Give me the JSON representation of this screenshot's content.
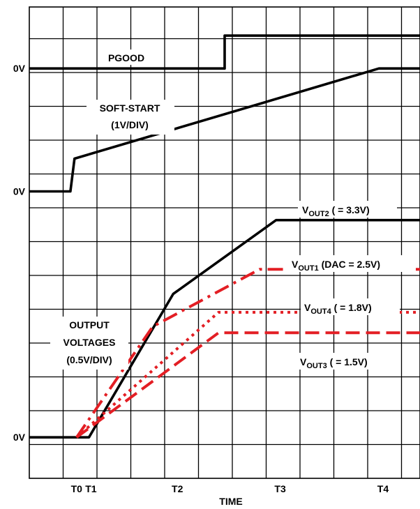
{
  "chart_data": {
    "type": "line",
    "title": "",
    "xlabel": "TIME",
    "x_ticks": [
      {
        "label": "T0",
        "x": 2.3
      },
      {
        "label": "T1",
        "x": 3.0
      },
      {
        "label": "T2",
        "x": 7.2
      },
      {
        "label": "T3",
        "x": 12.2
      },
      {
        "label": "T4",
        "x": 17.2
      }
    ],
    "y_zero_labels": [
      {
        "label": "0V",
        "y": 20
      },
      {
        "label": "0V",
        "y": 14
      },
      {
        "label": "0V",
        "y": 2
      }
    ],
    "grid": true,
    "xlim": [
      0,
      19
    ],
    "ylim": [
      0,
      23
    ],
    "series": [
      {
        "name": "PGOOD",
        "color": "#000000",
        "dash": "solid",
        "x": [
          0,
          9.5,
          9.5,
          19
        ],
        "y": [
          20,
          20,
          21.6,
          21.6
        ]
      },
      {
        "name": "SOFT-START (1V/DIV)",
        "color": "#000000",
        "dash": "solid",
        "x": [
          0,
          2.0,
          2.2,
          17.0,
          19
        ],
        "y": [
          14,
          14,
          15.6,
          20,
          20
        ]
      },
      {
        "name": "VOUT2 ( = 3.3V)",
        "color": "#000000",
        "dash": "solid",
        "x": [
          0,
          2.9,
          7.0,
          12.0,
          19
        ],
        "y": [
          2,
          2,
          9.0,
          12.6,
          12.6
        ]
      },
      {
        "name": "VOUT1 (DAC = 2.5V)",
        "color": "#e31e24",
        "dash": "dashdot",
        "x": [
          2.3,
          6.0,
          11.2,
          19
        ],
        "y": [
          2,
          7.4,
          10.2,
          10.2
        ]
      },
      {
        "name": "VOUT4 ( = 1.8V)",
        "color": "#e31e24",
        "dash": "dot",
        "x": [
          2.3,
          9.2,
          19
        ],
        "y": [
          2,
          8.1,
          8.1
        ]
      },
      {
        "name": "VOUT3 ( = 1.5V)",
        "color": "#e31e24",
        "dash": "dash",
        "x": [
          2.3,
          9.2,
          19
        ],
        "y": [
          2,
          7.1,
          7.1
        ]
      }
    ],
    "annotations": [
      {
        "id": "pgood",
        "text": "PGOOD"
      },
      {
        "id": "softstart_1",
        "text": "SOFT-START"
      },
      {
        "id": "softstart_2",
        "text": "(1V/DIV)"
      },
      {
        "id": "output_1",
        "text": "OUTPUT"
      },
      {
        "id": "output_2",
        "text": "VOLTAGES"
      },
      {
        "id": "output_3",
        "text": "(0.5V/DIV)"
      },
      {
        "id": "vout2",
        "prefix": "V",
        "sub": "OUT2",
        "suffix": " ( = 3.3V)"
      },
      {
        "id": "vout1",
        "prefix": "V",
        "sub": "OUT1",
        "suffix": " (DAC = 2.5V)"
      },
      {
        "id": "vout4",
        "prefix": "V",
        "sub": "OUT4",
        "suffix": " ( = 1.8V)"
      },
      {
        "id": "vout3",
        "prefix": "V",
        "sub": "OUT3",
        "suffix": " ( = 1.5V)"
      }
    ]
  }
}
